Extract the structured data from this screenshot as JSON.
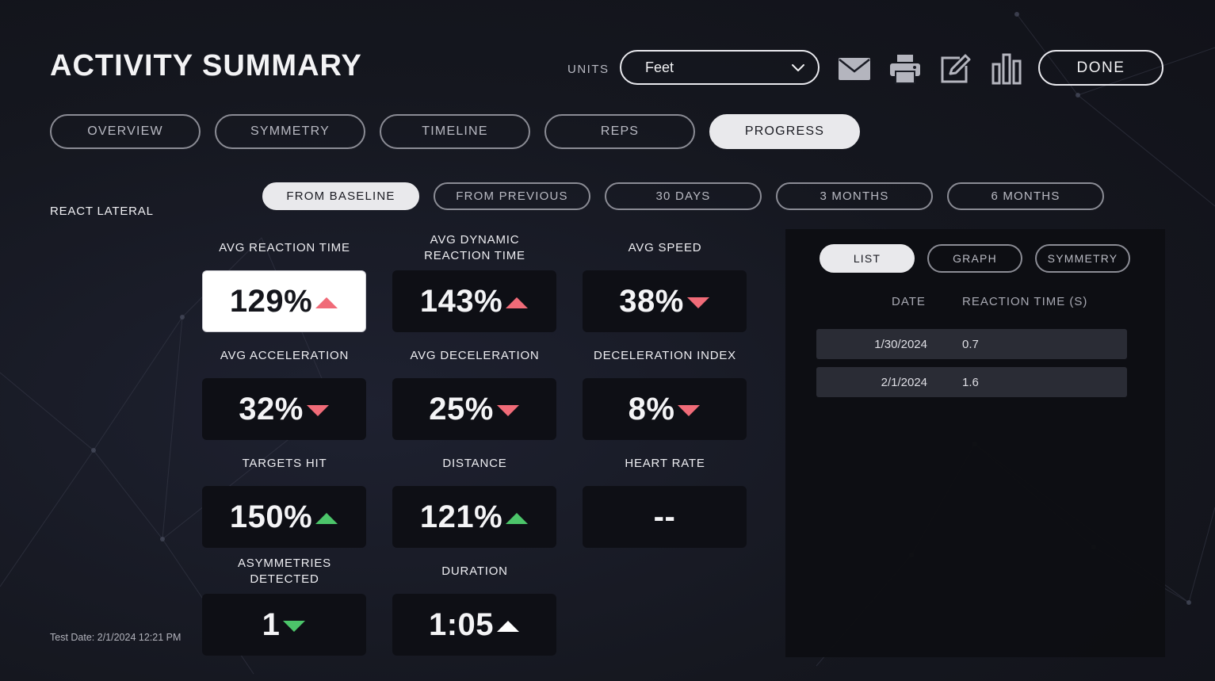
{
  "header": {
    "title": "ACTIVITY SUMMARY",
    "units_label": "UNITS",
    "units_value": "Feet",
    "done_label": "DONE",
    "icons": [
      "mail-icon",
      "print-icon",
      "edit-icon",
      "bar-chart-icon"
    ]
  },
  "tabs": [
    {
      "label": "OVERVIEW",
      "active": false
    },
    {
      "label": "SYMMETRY",
      "active": false
    },
    {
      "label": "TIMELINE",
      "active": false
    },
    {
      "label": "REPS",
      "active": false
    },
    {
      "label": "PROGRESS",
      "active": true
    }
  ],
  "section_label": "REACT LATERAL",
  "filters": [
    {
      "label": "FROM BASELINE",
      "active": true
    },
    {
      "label": "FROM PREVIOUS",
      "active": false
    },
    {
      "label": "30 DAYS",
      "active": false
    },
    {
      "label": "3 MONTHS",
      "active": false
    },
    {
      "label": "6 MONTHS",
      "active": false
    }
  ],
  "metrics": [
    {
      "label_lines": [
        "AVG REACTION TIME"
      ],
      "value": "129%",
      "trend": "up",
      "trend_color": "#f06b78",
      "selected": true
    },
    {
      "label_lines": [
        "AVG DYNAMIC",
        "REACTION TIME"
      ],
      "value": "143%",
      "trend": "up",
      "trend_color": "#f06b78",
      "selected": false
    },
    {
      "label_lines": [
        "AVG SPEED"
      ],
      "value": "38%",
      "trend": "down",
      "trend_color": "#f06b78",
      "selected": false
    },
    {
      "label_lines": [
        "AVG ACCELERATION"
      ],
      "value": "32%",
      "trend": "down",
      "trend_color": "#f06b78",
      "selected": false
    },
    {
      "label_lines": [
        "AVG DECELERATION"
      ],
      "value": "25%",
      "trend": "down",
      "trend_color": "#f06b78",
      "selected": false
    },
    {
      "label_lines": [
        "DECELERATION INDEX"
      ],
      "value": "8%",
      "trend": "down",
      "trend_color": "#f06b78",
      "selected": false
    },
    {
      "label_lines": [
        "TARGETS HIT"
      ],
      "value": "150%",
      "trend": "up",
      "trend_color": "#4cc56a",
      "selected": false
    },
    {
      "label_lines": [
        "DISTANCE"
      ],
      "value": "121%",
      "trend": "up",
      "trend_color": "#4cc56a",
      "selected": false
    },
    {
      "label_lines": [
        "HEART RATE"
      ],
      "value": "--",
      "trend": "none",
      "trend_color": "",
      "selected": false
    },
    {
      "label_lines": [
        "ASYMMETRIES",
        "DETECTED"
      ],
      "value": "1",
      "trend": "down",
      "trend_color": "#4cc56a",
      "selected": false
    },
    {
      "label_lines": [
        "DURATION"
      ],
      "value": "1:05",
      "trend": "up",
      "trend_color": "#ffffff",
      "selected": false
    }
  ],
  "test_date": "Test Date: 2/1/2024 12:21 PM",
  "panel": {
    "tabs": [
      {
        "label": "LIST",
        "active": true
      },
      {
        "label": "GRAPH",
        "active": false
      },
      {
        "label": "SYMMETRY",
        "active": false
      }
    ],
    "columns": [
      "DATE",
      "REACTION TIME (S)"
    ],
    "rows": [
      {
        "date": "1/30/2024",
        "value": "0.7"
      },
      {
        "date": "2/1/2024",
        "value": "1.6"
      }
    ]
  }
}
